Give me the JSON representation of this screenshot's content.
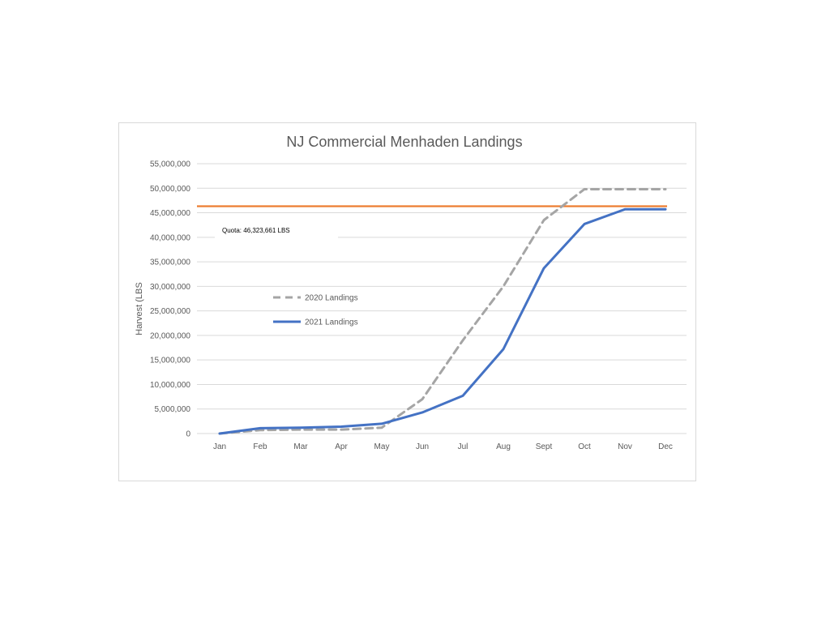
{
  "chart_data": {
    "type": "line",
    "title": "NJ Commercial Menhaden Landings",
    "xlabel": "",
    "ylabel": "Harvest (LBS",
    "categories": [
      "Jan",
      "Feb",
      "Mar",
      "Apr",
      "May",
      "Jun",
      "Jul",
      "Aug",
      "Sept",
      "Oct",
      "Nov",
      "Dec"
    ],
    "ylim": [
      0,
      55000000
    ],
    "yticks": [
      0,
      5000000,
      10000000,
      15000000,
      20000000,
      25000000,
      30000000,
      35000000,
      40000000,
      45000000,
      50000000,
      55000000
    ],
    "ytick_labels": [
      "0",
      "5,000,000",
      "10,000,000",
      "15,000,000",
      "20,000,000",
      "25,000,000",
      "30,000,000",
      "35,000,000",
      "40,000,000",
      "45,000,000",
      "50,000,000",
      "55,000,000"
    ],
    "grid": true,
    "legend_position": "center-left",
    "series": [
      {
        "name": "2020 Landings",
        "color": "#a5a5a5",
        "dash": true,
        "values": [
          0,
          700000,
          800000,
          800000,
          1200000,
          7000000,
          19000000,
          30000000,
          43500000,
          49800000,
          49800000,
          49800000
        ]
      },
      {
        "name": "2021 Landings",
        "color": "#4472c4",
        "dash": false,
        "values": [
          0,
          1100000,
          1200000,
          1400000,
          2000000,
          4300000,
          7700000,
          17200000,
          33700000,
          42700000,
          45700000,
          45700000
        ]
      }
    ],
    "reference_line": {
      "value": 46323661,
      "label": "Quota: 46,323,661 LBS",
      "color": "#ed7d31"
    }
  }
}
